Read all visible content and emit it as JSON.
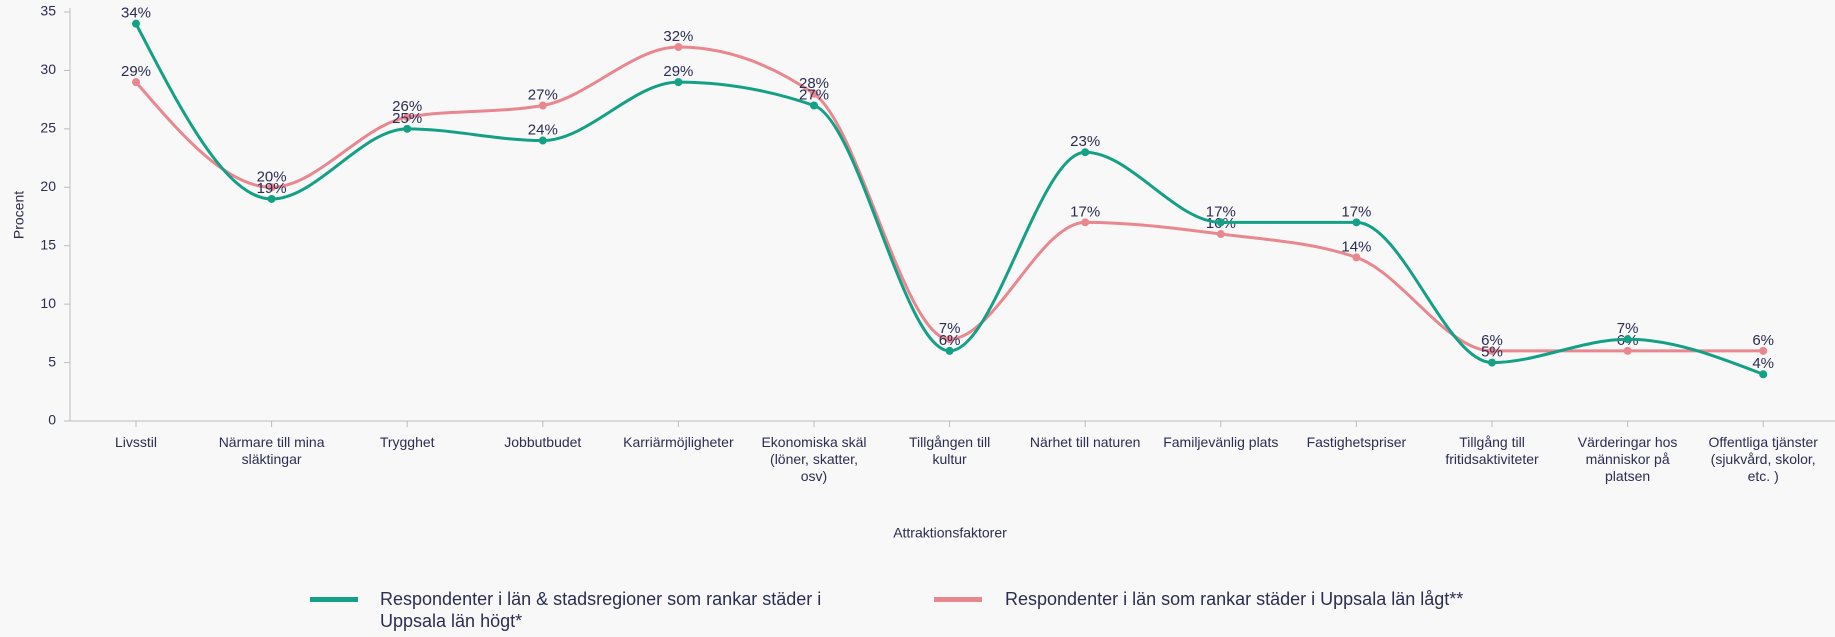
{
  "chart_data": {
    "type": "line",
    "xlabel": "Attraktionsfaktorer",
    "ylabel": "Procent",
    "categories": [
      "Livsstil",
      "Närmare till mina släktingar",
      "Trygghet",
      "Jobbutbudet",
      "Karriärmöjligheter",
      "Ekonomiska skäl (löner, skatter, osv)",
      "Tillgången till kultur",
      "Närhet till naturen",
      "Familjevänlig plats",
      "Fastighetspriser",
      "Tillgång till fritidsaktiviteter",
      "Värderingar hos människor på platsen",
      "Offentliga tjänster (sjukvård, skolor, etc. )"
    ],
    "series": [
      {
        "name": "Respondenter i län & stadsregioner som rankar städer i Uppsala län högt*",
        "color": "#14a085",
        "values": [
          34,
          19,
          25,
          24,
          29,
          27,
          6,
          23,
          17,
          17,
          5,
          7,
          4
        ],
        "value_labels": [
          "34%",
          "19%",
          "25%",
          "24%",
          "29%",
          "27%",
          "6%",
          "23%",
          "17%",
          "17%",
          "5%",
          "7%",
          "4%"
        ]
      },
      {
        "name": "Respondenter i län som rankar städer i Uppsala län lågt**",
        "color": "#e8878f",
        "values": [
          29,
          20,
          26,
          27,
          32,
          28,
          7,
          17,
          16,
          14,
          6,
          6,
          6
        ],
        "value_labels": [
          "29%",
          "20%",
          "26%",
          "27%",
          "32%",
          "28%",
          "7%",
          "17%",
          "16%",
          "14%",
          "6%",
          "6%",
          "6%"
        ]
      }
    ],
    "ylim": [
      0,
      35
    ],
    "yticks": [
      0,
      5,
      10,
      15,
      20,
      25,
      30,
      35
    ],
    "grid": false,
    "legend": "bottom"
  }
}
